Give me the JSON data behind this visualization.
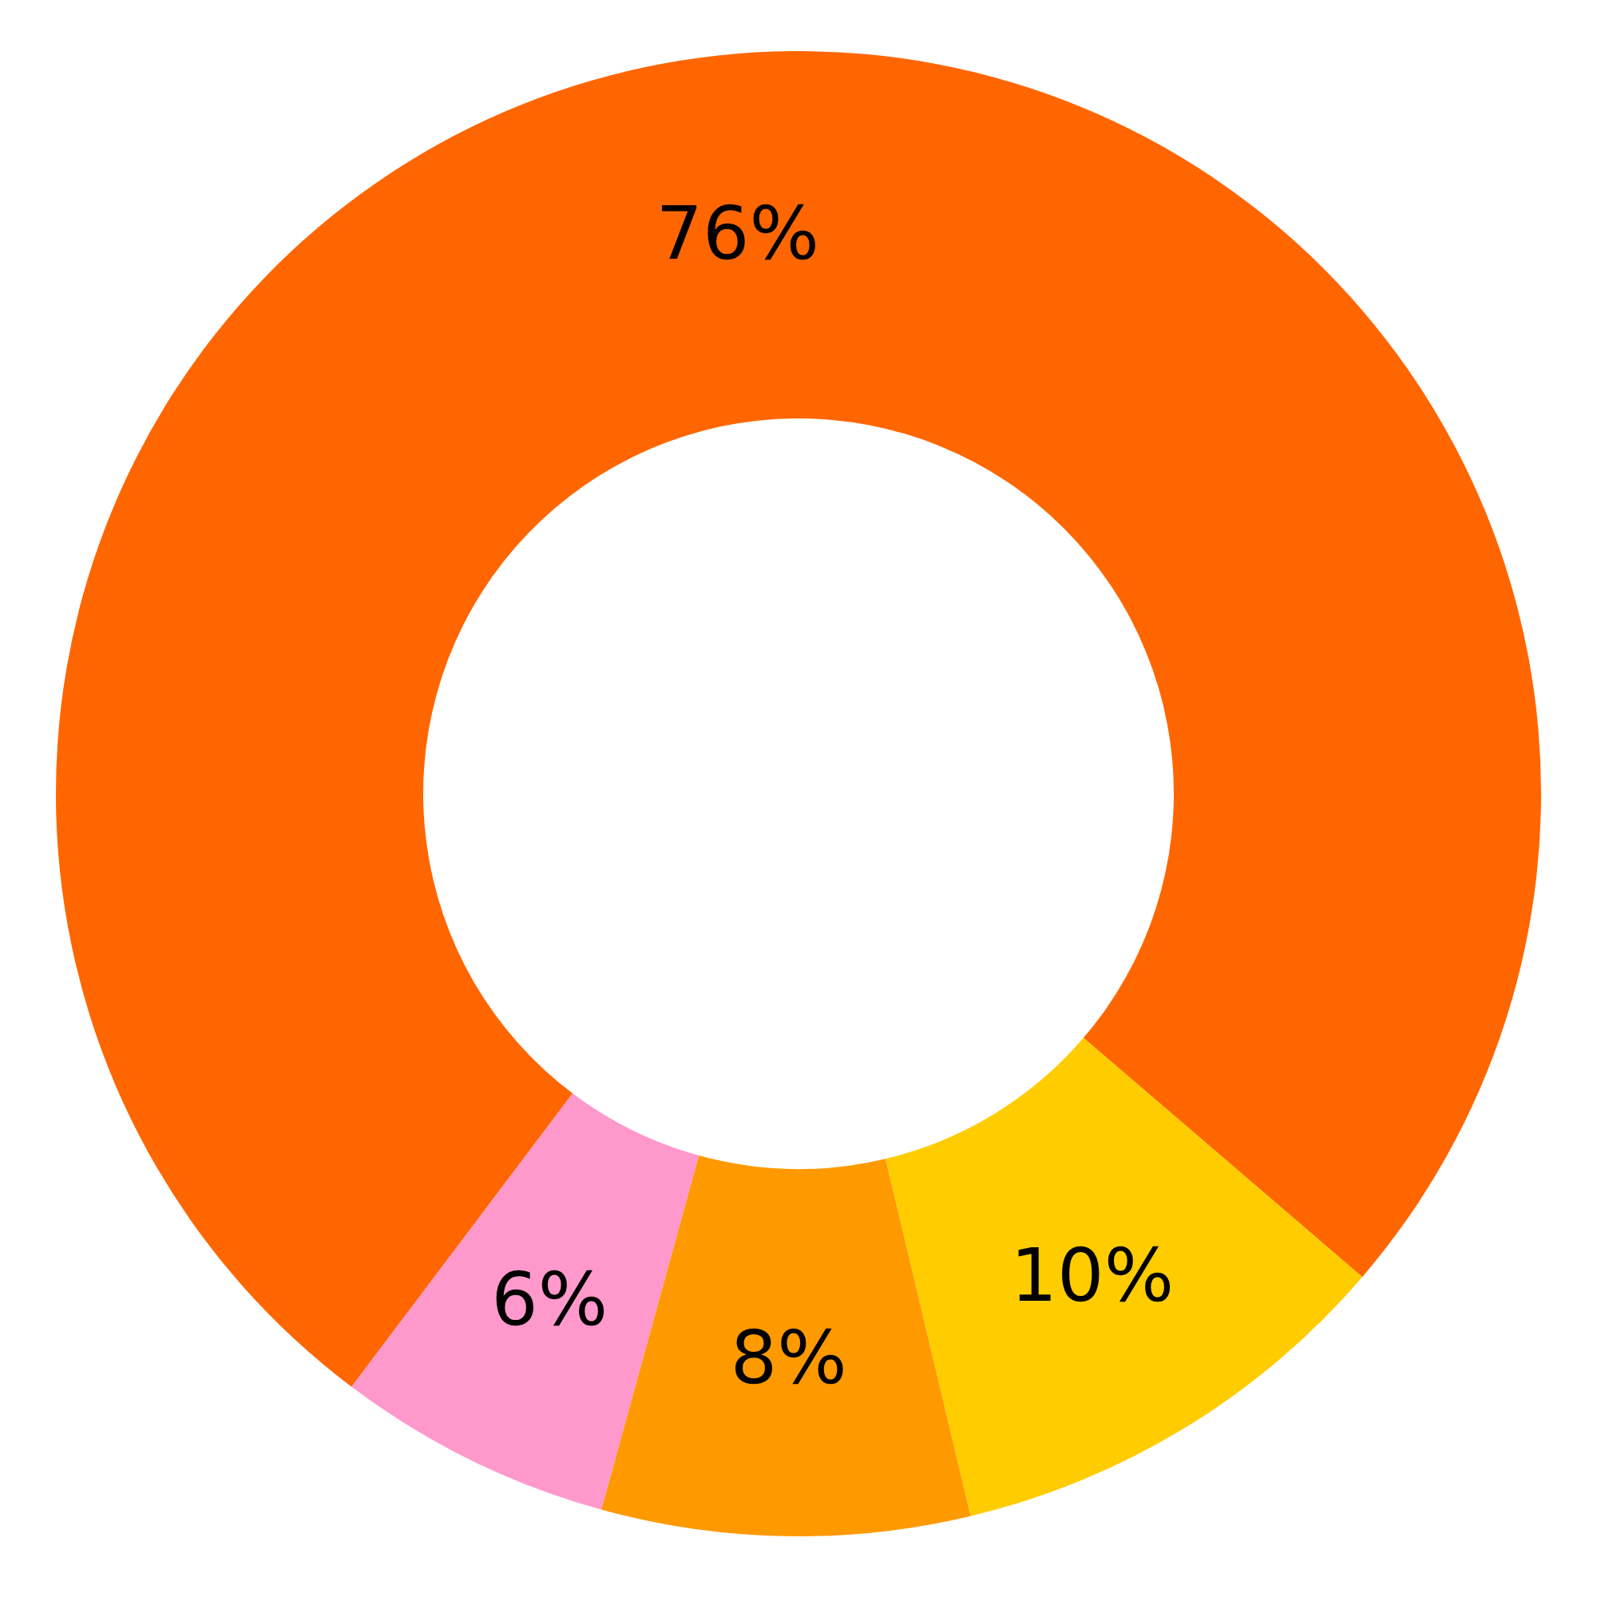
{
  "chart_data": {
    "type": "donut",
    "categories": [
      null,
      null,
      null,
      null
    ],
    "values": [
      76,
      10,
      8,
      6
    ],
    "colors": [
      "#ff6600",
      "#ffcc00",
      "#ff9900",
      "#ff99cc"
    ],
    "value_labels": [
      "76%",
      "10%",
      "8%",
      "6%"
    ],
    "legend": false
  }
}
